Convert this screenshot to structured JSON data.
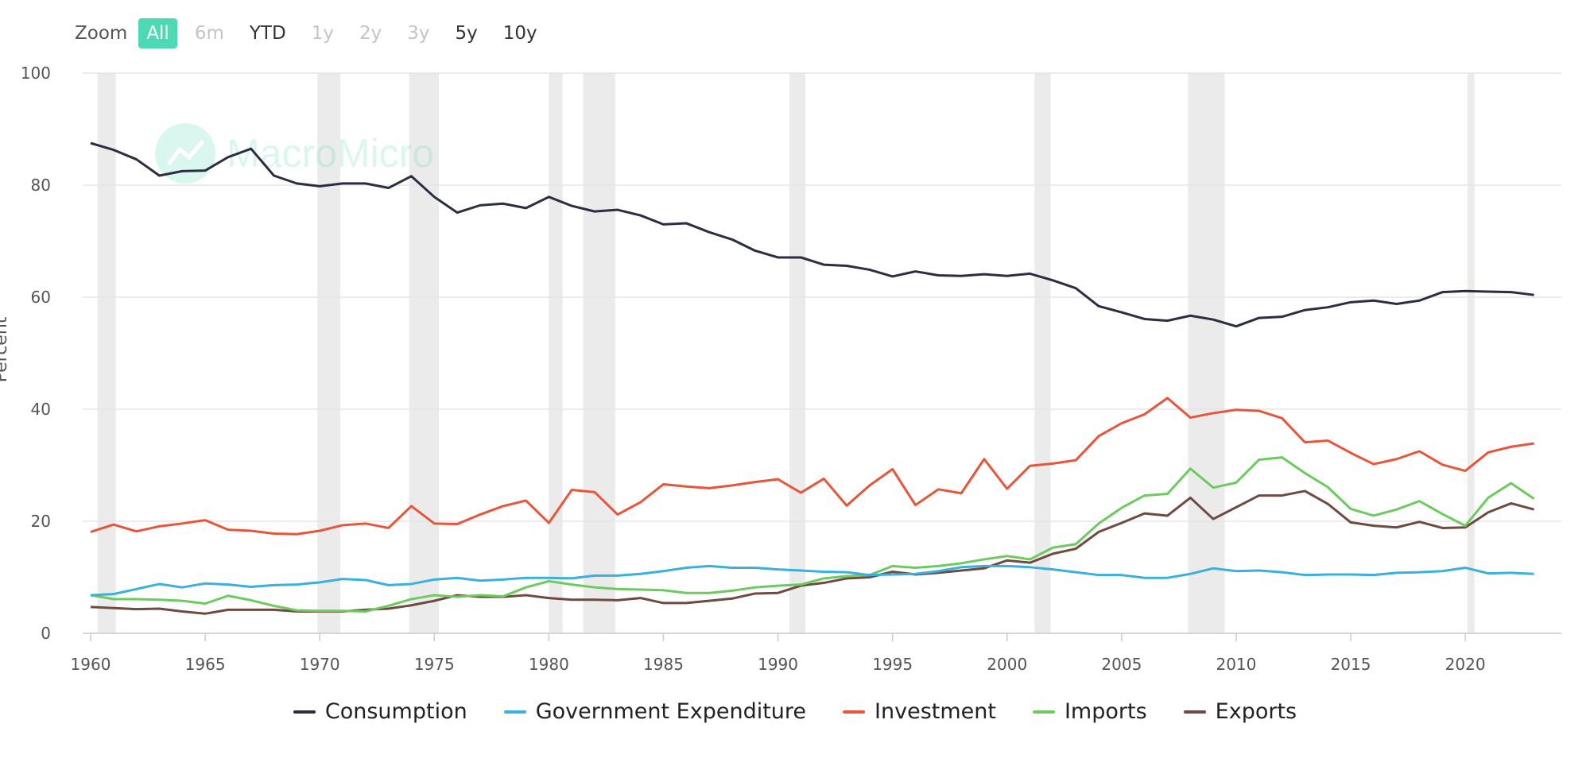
{
  "zoom": {
    "label": "Zoom",
    "buttons": [
      {
        "label": "All",
        "state": "active"
      },
      {
        "label": "6m",
        "state": "disabled"
      },
      {
        "label": "YTD",
        "state": "normal"
      },
      {
        "label": "1y",
        "state": "disabled"
      },
      {
        "label": "2y",
        "state": "disabled"
      },
      {
        "label": "3y",
        "state": "disabled"
      },
      {
        "label": "5y",
        "state": "normal"
      },
      {
        "label": "10y",
        "state": "normal"
      }
    ]
  },
  "watermark": "MacroMicro",
  "colors": {
    "accent": "#4dd9b3",
    "consumption": "#2b2d42",
    "government": "#3ab0dc",
    "investment": "#e8553b",
    "imports": "#6cca5f",
    "exports": "#6e4a40"
  },
  "chart_data": {
    "type": "line",
    "ylabel": "Percent",
    "ylim": [
      0,
      100
    ],
    "yticks": [
      "0",
      "20",
      "40",
      "60",
      "80",
      "100"
    ],
    "xticks": [
      "1960",
      "1965",
      "1970",
      "1975",
      "1980",
      "1985",
      "1990",
      "1995",
      "2000",
      "2005",
      "2010",
      "2015",
      "2020"
    ],
    "grid": true,
    "legend_position": "bottom",
    "recession_periods": [
      [
        1960.3,
        1961.1
      ],
      [
        1969.9,
        1970.9
      ],
      [
        1973.9,
        1975.2
      ],
      [
        1980.0,
        1980.6
      ],
      [
        1981.5,
        1982.9
      ],
      [
        1990.5,
        1991.2
      ],
      [
        2001.2,
        2001.9
      ],
      [
        2007.9,
        2009.5
      ],
      [
        2020.1,
        2020.4
      ]
    ],
    "x": [
      1960,
      1961,
      1962,
      1963,
      1964,
      1965,
      1966,
      1967,
      1968,
      1969,
      1970,
      1971,
      1972,
      1973,
      1974,
      1975,
      1976,
      1977,
      1978,
      1979,
      1980,
      1981,
      1982,
      1983,
      1984,
      1985,
      1986,
      1987,
      1988,
      1989,
      1990,
      1991,
      1992,
      1993,
      1994,
      1995,
      1996,
      1997,
      1998,
      1999,
      2000,
      2001,
      2002,
      2003,
      2004,
      2005,
      2006,
      2007,
      2008,
      2009,
      2010,
      2011,
      2012,
      2013,
      2014,
      2015,
      2016,
      2017,
      2018,
      2019,
      2020,
      2021,
      2022,
      2023
    ],
    "series": [
      {
        "name": "Consumption",
        "color": "#2b2d42",
        "values": [
          87.5,
          86.3,
          84.6,
          81.7,
          82.5,
          82.6,
          85.0,
          86.5,
          81.7,
          80.3,
          79.8,
          80.3,
          80.3,
          79.5,
          81.6,
          77.9,
          75.1,
          76.4,
          76.7,
          75.9,
          77.9,
          76.3,
          75.3,
          75.6,
          74.6,
          73.0,
          73.2,
          71.6,
          70.3,
          68.3,
          67.1,
          67.1,
          65.8,
          65.6,
          64.9,
          63.7,
          64.6,
          63.9,
          63.8,
          64.1,
          63.8,
          64.2,
          63.0,
          61.6,
          58.4,
          57.3,
          56.1,
          55.8,
          56.7,
          56.0,
          54.8,
          56.3,
          56.5,
          57.7,
          58.2,
          59.1,
          59.4,
          58.8,
          59.4,
          60.9,
          61.1,
          61.0,
          60.9,
          60.4
        ]
      },
      {
        "name": "Government Expenditure",
        "color": "#3ab0dc",
        "values": [
          6.8,
          7.0,
          7.9,
          8.8,
          8.2,
          8.9,
          8.7,
          8.3,
          8.6,
          8.7,
          9.1,
          9.7,
          9.5,
          8.6,
          8.8,
          9.6,
          9.9,
          9.4,
          9.6,
          9.9,
          9.9,
          9.8,
          10.3,
          10.3,
          10.6,
          11.1,
          11.7,
          12.0,
          11.7,
          11.7,
          11.4,
          11.2,
          11.0,
          10.9,
          10.4,
          10.5,
          10.6,
          11.1,
          11.8,
          12.0,
          12.0,
          11.8,
          11.4,
          10.9,
          10.4,
          10.4,
          9.9,
          9.9,
          10.6,
          11.6,
          11.1,
          11.2,
          10.9,
          10.4,
          10.5,
          10.5,
          10.4,
          10.8,
          10.9,
          11.1,
          11.7,
          10.7,
          10.8,
          10.6
        ]
      },
      {
        "name": "Investment",
        "color": "#e8553b",
        "values": [
          18.1,
          19.4,
          18.2,
          19.1,
          19.6,
          20.2,
          18.5,
          18.3,
          17.8,
          17.7,
          18.3,
          19.3,
          19.6,
          18.8,
          22.7,
          19.6,
          19.5,
          21.2,
          22.7,
          23.7,
          19.7,
          25.6,
          25.2,
          21.2,
          23.4,
          26.6,
          26.2,
          25.9,
          26.4,
          27.0,
          27.5,
          25.1,
          27.6,
          22.8,
          26.4,
          29.3,
          22.9,
          25.7,
          25.0,
          31.1,
          25.8,
          29.9,
          30.3,
          30.9,
          35.2,
          37.5,
          39.1,
          42.0,
          38.5,
          39.3,
          39.9,
          39.7,
          38.4,
          34.1,
          34.4,
          32.2,
          30.2,
          31.1,
          32.5,
          30.1,
          29.0,
          32.3,
          33.3,
          33.9
        ]
      },
      {
        "name": "Imports",
        "color": "#6cca5f",
        "values": [
          6.8,
          6.1,
          6.1,
          6.0,
          5.8,
          5.3,
          6.7,
          5.9,
          4.9,
          4.1,
          4.0,
          4.0,
          3.9,
          4.9,
          6.1,
          6.8,
          6.5,
          6.8,
          6.6,
          8.2,
          9.3,
          8.7,
          8.2,
          7.9,
          7.8,
          7.7,
          7.2,
          7.2,
          7.6,
          8.2,
          8.5,
          8.7,
          9.8,
          10.2,
          10.4,
          12.0,
          11.7,
          12.0,
          12.5,
          13.2,
          13.8,
          13.2,
          15.3,
          15.9,
          19.6,
          22.4,
          24.6,
          24.9,
          29.4,
          26.0,
          26.9,
          31.0,
          31.4,
          28.6,
          26.1,
          22.2,
          21.0,
          22.1,
          23.6,
          21.3,
          19.2,
          24.2,
          26.8,
          24.0
        ]
      },
      {
        "name": "Exports",
        "color": "#6e4a40",
        "values": [
          4.7,
          4.5,
          4.3,
          4.4,
          3.9,
          3.5,
          4.2,
          4.2,
          4.2,
          3.9,
          3.9,
          3.9,
          4.2,
          4.4,
          5.0,
          5.8,
          6.8,
          6.5,
          6.5,
          6.8,
          6.3,
          6.0,
          6.0,
          5.9,
          6.3,
          5.4,
          5.4,
          5.8,
          6.2,
          7.1,
          7.2,
          8.5,
          9.0,
          9.8,
          10.0,
          11.0,
          10.5,
          10.8,
          11.2,
          11.6,
          13.0,
          12.6,
          14.2,
          15.1,
          18.1,
          19.7,
          21.4,
          21.0,
          24.2,
          20.4,
          22.5,
          24.6,
          24.6,
          25.4,
          23.1,
          19.8,
          19.2,
          18.9,
          19.9,
          18.8,
          18.9,
          21.6,
          23.2,
          22.1
        ]
      }
    ]
  }
}
